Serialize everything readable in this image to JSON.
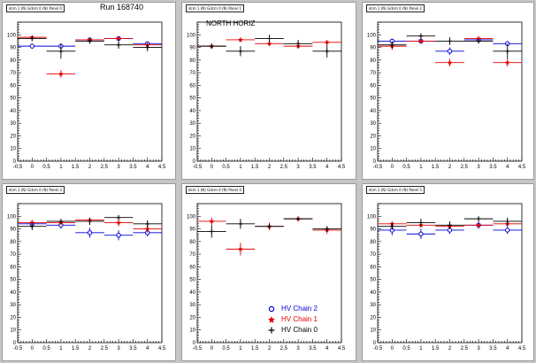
{
  "run_label": "Run 168740",
  "north_label": "NORTH HORIZ",
  "colors": {
    "chain0": "#000000",
    "chain1": "#e00000",
    "chain2": "#0000dd",
    "pad_border": "#9a9a9a"
  },
  "legend": [
    {
      "name": "HV Chain 2",
      "color": "#0000dd",
      "marker": "open-circle"
    },
    {
      "name": "HV Chain 1",
      "color": "#e00000",
      "marker": "filled-star"
    },
    {
      "name": "HV Chain 0",
      "color": "#000000",
      "marker": "plus"
    }
  ],
  "chart_data": [
    {
      "type": "scatter",
      "title": "dcm 1 (N) Gdcm 0 (N) Panel 0",
      "xlim": [
        -0.5,
        4.5
      ],
      "ylim": [
        0,
        110
      ],
      "xticks": [
        "-0.5",
        "0",
        "0.5",
        "1",
        "1.5",
        "2",
        "2.5",
        "3",
        "3.5",
        "4",
        "4.5"
      ],
      "yticks": [
        "0",
        "10",
        "20",
        "30",
        "40",
        "50",
        "60",
        "70",
        "80",
        "90",
        "100"
      ],
      "series": [
        {
          "name": "HV Chain 2",
          "x": [
            0,
            1,
            2,
            3,
            4
          ],
          "y": [
            91,
            91,
            96,
            97,
            93
          ],
          "err": [
            2,
            2,
            1,
            1,
            1.5
          ]
        },
        {
          "name": "HV Chain 1",
          "x": [
            0,
            1,
            2,
            3,
            4
          ],
          "y": [
            98,
            69,
            96,
            97,
            92
          ],
          "err": [
            1,
            3,
            2,
            1,
            2
          ]
        },
        {
          "name": "HV Chain 0",
          "x": [
            0,
            1,
            2,
            3,
            4
          ],
          "y": [
            97,
            87,
            95,
            92,
            90
          ],
          "err": [
            2,
            6,
            2,
            3,
            3
          ]
        }
      ]
    },
    {
      "type": "scatter",
      "title": "dcm 1 (N) Gdcm 0 (N) Panel 1",
      "xlim": [
        -0.5,
        4.5
      ],
      "ylim": [
        0,
        110
      ],
      "xticks": [
        "-0.5",
        "0",
        "0.5",
        "1",
        "1.5",
        "2",
        "2.5",
        "3",
        "3.5",
        "4",
        "4.5"
      ],
      "yticks": [
        "0",
        "10",
        "20",
        "30",
        "40",
        "50",
        "60",
        "70",
        "80",
        "90",
        "100"
      ],
      "series": [
        {
          "name": "HV Chain 2",
          "x": [],
          "y": [],
          "err": []
        },
        {
          "name": "HV Chain 1",
          "x": [
            0,
            1,
            2,
            3,
            4
          ],
          "y": [
            91,
            96,
            93,
            91,
            94
          ],
          "err": [
            2,
            2,
            2,
            2,
            2
          ]
        },
        {
          "name": "HV Chain 0",
          "x": [
            0,
            1,
            2,
            3,
            4
          ],
          "y": [
            91,
            87,
            97,
            93,
            87
          ],
          "err": [
            2,
            4,
            3,
            3,
            5
          ]
        }
      ]
    },
    {
      "type": "scatter",
      "title": "dcm 1 (N) Gdcm 0 (N) Panel 2",
      "xlim": [
        -0.5,
        4.5
      ],
      "ylim": [
        0,
        110
      ],
      "xticks": [
        "-0.5",
        "0",
        "0.5",
        "1",
        "1.5",
        "2",
        "2.5",
        "3",
        "3.5",
        "4",
        "4.5"
      ],
      "yticks": [
        "0",
        "10",
        "20",
        "30",
        "40",
        "50",
        "60",
        "70",
        "80",
        "90",
        "100"
      ],
      "series": [
        {
          "name": "HV Chain 2",
          "x": [
            0,
            1,
            2,
            3,
            4
          ],
          "y": [
            95,
            95,
            87,
            96,
            93
          ],
          "err": [
            2,
            2,
            3,
            1,
            2
          ]
        },
        {
          "name": "HV Chain 1",
          "x": [
            0,
            1,
            2,
            3,
            4
          ],
          "y": [
            91,
            95,
            78,
            97,
            78
          ],
          "err": [
            3,
            2,
            3,
            2,
            3
          ]
        },
        {
          "name": "HV Chain 0",
          "x": [
            0,
            1,
            2,
            3,
            4
          ],
          "y": [
            92,
            99,
            95,
            95,
            87
          ],
          "err": [
            3,
            2,
            3,
            2,
            6
          ]
        }
      ]
    },
    {
      "type": "scatter",
      "title": "dcm 1 (N) Gdcm 0 (N) Panel 3",
      "xlim": [
        -0.5,
        4.5
      ],
      "ylim": [
        0,
        110
      ],
      "xticks": [
        "-0.5",
        "0",
        "0.5",
        "1",
        "1.5",
        "2",
        "2.5",
        "3",
        "3.5",
        "4",
        "4.5"
      ],
      "yticks": [
        "0",
        "10",
        "20",
        "30",
        "40",
        "50",
        "60",
        "70",
        "80",
        "90",
        "100"
      ],
      "series": [
        {
          "name": "HV Chain 2",
          "x": [
            0,
            1,
            2,
            3,
            4
          ],
          "y": [
            94,
            93,
            87,
            85,
            87
          ],
          "err": [
            3,
            3,
            4,
            4,
            3
          ]
        },
        {
          "name": "HV Chain 1",
          "x": [
            0,
            1,
            2,
            3,
            4
          ],
          "y": [
            95,
            95,
            97,
            95,
            90
          ],
          "err": [
            2,
            2,
            2,
            3,
            3
          ]
        },
        {
          "name": "HV Chain 0",
          "x": [
            0,
            1,
            2,
            3,
            4
          ],
          "y": [
            92,
            96,
            96,
            99,
            94
          ],
          "err": [
            3,
            2,
            3,
            2,
            3
          ]
        }
      ]
    },
    {
      "type": "scatter",
      "title": "dcm 1 (N) Gdcm 0 (N) Panel 4",
      "xlim": [
        -0.5,
        4.5
      ],
      "ylim": [
        0,
        110
      ],
      "xticks": [
        "-0.5",
        "0",
        "0.5",
        "1",
        "1.5",
        "2",
        "2.5",
        "3",
        "3.5",
        "4",
        "4.5"
      ],
      "yticks": [
        "0",
        "10",
        "20",
        "30",
        "40",
        "50",
        "60",
        "70",
        "80",
        "90",
        "100"
      ],
      "series": [
        {
          "name": "HV Chain 2",
          "x": [],
          "y": [],
          "err": []
        },
        {
          "name": "HV Chain 1",
          "x": [
            0,
            1,
            2,
            3,
            4
          ],
          "y": [
            96,
            74,
            92,
            98,
            89
          ],
          "err": [
            3,
            5,
            3,
            2,
            3
          ]
        },
        {
          "name": "HV Chain 0",
          "x": [
            0,
            1,
            2,
            3,
            4
          ],
          "y": [
            88,
            94,
            92,
            98,
            90
          ],
          "err": [
            5,
            4,
            2,
            1,
            2
          ]
        }
      ]
    },
    {
      "type": "scatter",
      "title": "dcm 1 (N) Gdcm 0 (N) Panel 5",
      "xlim": [
        -0.5,
        4.5
      ],
      "ylim": [
        0,
        110
      ],
      "xticks": [
        "-0.5",
        "0",
        "0.5",
        "1",
        "1.5",
        "2",
        "2.5",
        "3",
        "3.5",
        "4",
        "4.5"
      ],
      "yticks": [
        "0",
        "10",
        "20",
        "30",
        "40",
        "50",
        "60",
        "70",
        "80",
        "90",
        "100"
      ],
      "series": [
        {
          "name": "HV Chain 2",
          "x": [
            0,
            1,
            2,
            3,
            4
          ],
          "y": [
            89,
            86,
            89,
            93,
            89
          ],
          "err": [
            4,
            4,
            3,
            3,
            3
          ]
        },
        {
          "name": "HV Chain 1",
          "x": [
            0,
            1,
            2,
            3,
            4
          ],
          "y": [
            94,
            93,
            92,
            93,
            94
          ],
          "err": [
            2,
            2,
            2,
            2,
            2
          ]
        },
        {
          "name": "HV Chain 0",
          "x": [
            0,
            1,
            2,
            3,
            4
          ],
          "y": [
            92,
            95,
            93,
            98,
            96
          ],
          "err": [
            3,
            3,
            3,
            2,
            3
          ]
        }
      ]
    }
  ]
}
